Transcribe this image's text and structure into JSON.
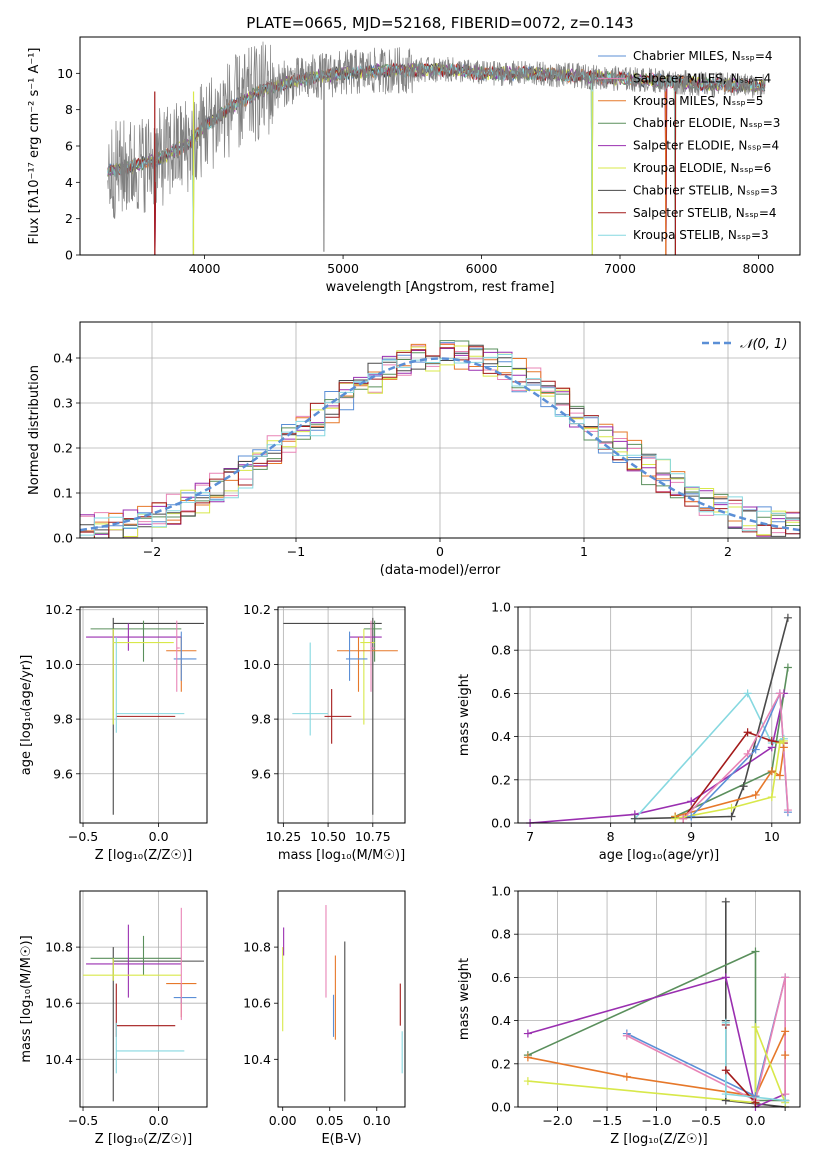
{
  "colors": {
    "chabrier_miles": "#5b8fd6",
    "salpeter_miles": "#e884b6",
    "kroupa_miles": "#e6782a",
    "chabrier_elodie": "#5a8f5c",
    "salpeter_elodie": "#9a2fb0",
    "kroupa_elodie": "#d8e84a",
    "chabrier_stelib": "#4a4a4a",
    "salpeter_stelib": "#a31a1a",
    "kroupa_stelib": "#86d8e0",
    "data": "#808080",
    "normal": "#5b8fd6",
    "grid": "#b0b0b0"
  },
  "chart_data": [
    {
      "id": "spectrum",
      "type": "line",
      "title": "PLATE=0665, MJD=52168, FIBERID=0072, z=0.143",
      "xlabel": "wavelength [Angstrom, rest frame]",
      "ylabel": "Flux [fλ10⁻¹⁷ erg cm⁻² s⁻¹ A⁻¹]",
      "xlim": [
        3100,
        8300
      ],
      "ylim": [
        0,
        12
      ],
      "xticks": [
        4000,
        5000,
        6000,
        7000,
        8000
      ],
      "yticks": [
        0,
        2,
        4,
        6,
        8,
        10
      ],
      "grid": false,
      "legend_position": "right",
      "series": [
        {
          "name": "Chabrier MILES, Nₛₛₚ=4",
          "color_key": "chabrier_miles"
        },
        {
          "name": "Salpeter MILES, Nₛₛₚ=4",
          "color_key": "salpeter_miles"
        },
        {
          "name": "Kroupa MILES, Nₛₛₚ=5",
          "color_key": "kroupa_miles"
        },
        {
          "name": "Chabrier ELODIE, Nₛₛₚ=3",
          "color_key": "chabrier_elodie"
        },
        {
          "name": "Salpeter ELODIE, Nₛₛₚ=4",
          "color_key": "salpeter_elodie"
        },
        {
          "name": "Kroupa ELODIE, Nₛₛₚ=6",
          "color_key": "kroupa_elodie"
        },
        {
          "name": "Chabrier STELIB, Nₛₛₚ=3",
          "color_key": "chabrier_stelib"
        },
        {
          "name": "Salpeter STELIB, Nₛₛₚ=4",
          "color_key": "salpeter_stelib"
        },
        {
          "name": "Kroupa STELIB, Nₛₛₚ=3",
          "color_key": "kroupa_stelib"
        }
      ],
      "continuum": {
        "x": [
          3300,
          3500,
          3700,
          3900,
          4000,
          4200,
          4400,
          4600,
          4800,
          5000,
          5200,
          5500,
          5800,
          6000,
          6300,
          6600,
          7000,
          7300,
          7600,
          8050
        ],
        "y": [
          4.6,
          4.9,
          5.4,
          6.2,
          7.1,
          8.2,
          9.0,
          9.5,
          9.8,
          10.0,
          10.1,
          10.2,
          10.2,
          10.0,
          10.0,
          9.9,
          9.7,
          9.6,
          9.4,
          9.3
        ]
      },
      "data_wavelength_range": [
        3300,
        8050
      ],
      "absorption_dips": [
        {
          "x": 4861,
          "y": 0.2
        },
        {
          "x": 3935,
          "y": 4.3
        }
      ],
      "model_dips": [
        {
          "x": 3640,
          "y": 0.0
        },
        {
          "x": 3920,
          "y": 0.0
        },
        {
          "x": 6800,
          "y": 0.0
        },
        {
          "x": 7330,
          "y": 0.0
        },
        {
          "x": 7400,
          "y": 0.0
        }
      ]
    },
    {
      "id": "residuals",
      "type": "histogram",
      "xlabel": "(data-model)/error",
      "ylabel": "Normed distribution",
      "xlim": [
        -2.5,
        2.5
      ],
      "ylim": [
        0,
        0.48
      ],
      "xticks": [
        -2,
        -1,
        0,
        1,
        2
      ],
      "yticks": [
        0.0,
        0.1,
        0.2,
        0.3,
        0.4
      ],
      "grid": true,
      "bin_width": 0.1,
      "legend": "𝒩(0, 1)",
      "legend_position": "top-right",
      "normal": {
        "mean": 0,
        "sigma": 1
      }
    },
    {
      "id": "age_vs_z",
      "type": "errorbar",
      "xlabel": "Z [log₁₀(Z/Z☉)]",
      "ylabel": "age  [log₁₀(age/yr)]",
      "xlim": [
        -0.52,
        0.32
      ],
      "ylim": [
        9.42,
        10.21
      ],
      "xticks": [
        -0.5,
        0.0
      ],
      "yticks": [
        9.6,
        9.8,
        10.0,
        10.2
      ],
      "grid": true,
      "points": [
        {
          "color_key": "chabrier_stelib",
          "x": -0.3,
          "xerr": [
            0.0,
            0.6
          ],
          "y": 10.15,
          "yerr": [
            0.7,
            0.02
          ]
        },
        {
          "color_key": "chabrier_elodie",
          "x": -0.1,
          "xerr": [
            0.35,
            0.25
          ],
          "y": 10.13,
          "yerr": [
            0.12,
            0.03
          ]
        },
        {
          "color_key": "salpeter_elodie",
          "x": -0.2,
          "xerr": [
            0.28,
            0.35
          ],
          "y": 10.1,
          "yerr": [
            0.05,
            0.05
          ]
        },
        {
          "color_key": "kroupa_elodie",
          "x": -0.3,
          "xerr": [
            0.0,
            0.4
          ],
          "y": 10.08,
          "yerr": [
            0.3,
            0.05
          ]
        },
        {
          "color_key": "kroupa_miles",
          "x": 0.15,
          "xerr": [
            0.1,
            0.1
          ],
          "y": 10.05,
          "yerr": [
            0.15,
            0.05
          ]
        },
        {
          "color_key": "chabrier_miles",
          "x": 0.15,
          "xerr": [
            0.05,
            0.1
          ],
          "y": 10.02,
          "yerr": [
            0.08,
            0.1
          ]
        },
        {
          "color_key": "salpeter_miles",
          "x": 0.12,
          "xerr": [
            0.0,
            0.02
          ],
          "y": 10.06,
          "yerr": [
            0.16,
            0.1
          ]
        },
        {
          "color_key": "salpeter_stelib",
          "x": -0.28,
          "xerr": [
            0.0,
            0.39
          ],
          "y": 9.81,
          "yerr": [
            0.0,
            0.0
          ]
        },
        {
          "color_key": "kroupa_stelib",
          "x": -0.28,
          "xerr": [
            0.0,
            0.45
          ],
          "y": 9.82,
          "yerr": [
            0.07,
            0.28
          ]
        }
      ]
    },
    {
      "id": "age_vs_mass",
      "type": "errorbar",
      "xlabel": "mass [log₁₀(M/M☉)]",
      "ylabel": "",
      "xlim": [
        10.22,
        10.93
      ],
      "ylim": [
        9.42,
        10.21
      ],
      "xticks": [
        10.25,
        10.5,
        10.75
      ],
      "yticks": [
        9.6,
        9.8,
        10.0,
        10.2
      ],
      "grid": true,
      "points": [
        {
          "color_key": "chabrier_stelib",
          "x": 10.75,
          "xerr": [
            0.5,
            0.05
          ],
          "y": 10.15,
          "yerr": [
            0.7,
            0.02
          ]
        },
        {
          "color_key": "chabrier_elodie",
          "x": 10.76,
          "xerr": [
            0.06,
            0.04
          ],
          "y": 10.13,
          "yerr": [
            0.12,
            0.03
          ]
        },
        {
          "color_key": "salpeter_elodie",
          "x": 10.74,
          "xerr": [
            0.12,
            0.06
          ],
          "y": 10.1,
          "yerr": [
            0.05,
            0.05
          ]
        },
        {
          "color_key": "kroupa_elodie",
          "x": 10.7,
          "xerr": [
            0.02,
            0.06
          ],
          "y": 10.08,
          "yerr": [
            0.3,
            0.05
          ]
        },
        {
          "color_key": "kroupa_miles",
          "x": 10.67,
          "xerr": [
            0.12,
            0.22
          ],
          "y": 10.05,
          "yerr": [
            0.15,
            0.05
          ]
        },
        {
          "color_key": "chabrier_miles",
          "x": 10.62,
          "xerr": [
            0.02,
            0.1
          ],
          "y": 10.02,
          "yerr": [
            0.08,
            0.1
          ]
        },
        {
          "color_key": "salpeter_miles",
          "x": 10.74,
          "xerr": [
            0.0,
            0.02
          ],
          "y": 10.06,
          "yerr": [
            0.16,
            0.1
          ]
        },
        {
          "color_key": "salpeter_stelib",
          "x": 10.52,
          "xerr": [
            0.04,
            0.11
          ],
          "y": 9.81,
          "yerr": [
            0.1,
            0.1
          ]
        },
        {
          "color_key": "kroupa_stelib",
          "x": 10.4,
          "xerr": [
            0.1,
            0.1
          ],
          "y": 9.82,
          "yerr": [
            0.08,
            0.26
          ]
        }
      ]
    },
    {
      "id": "weight_vs_age",
      "type": "line",
      "xlabel": "age  [log₁₀(age/yr)]",
      "ylabel": "mass weight",
      "xlim": [
        6.85,
        10.35
      ],
      "ylim": [
        0.0,
        1.0
      ],
      "xticks": [
        7,
        8,
        9,
        10
      ],
      "yticks": [
        0.0,
        0.2,
        0.4,
        0.6,
        0.8,
        1.0
      ],
      "grid": true,
      "series": [
        {
          "color_key": "salpeter_elodie",
          "x": [
            7.0,
            8.3,
            9.0,
            10.0,
            10.15
          ],
          "y": [
            0.0,
            0.04,
            0.1,
            0.35,
            0.6
          ]
        },
        {
          "color_key": "kroupa_stelib",
          "x": [
            8.3,
            9.7,
            10.0,
            10.15
          ],
          "y": [
            0.02,
            0.6,
            0.37,
            0.39
          ]
        },
        {
          "color_key": "chabrier_stelib",
          "x": [
            8.3,
            9.5,
            9.65,
            10.2
          ],
          "y": [
            0.02,
            0.03,
            0.17,
            0.95
          ]
        },
        {
          "color_key": "chabrier_elodie",
          "x": [
            8.8,
            10.0,
            10.2
          ],
          "y": [
            0.03,
            0.24,
            0.72
          ]
        },
        {
          "color_key": "salpeter_stelib",
          "x": [
            8.9,
            9.7,
            10.0,
            10.15
          ],
          "y": [
            0.02,
            0.42,
            0.38,
            0.37
          ]
        },
        {
          "color_key": "kroupa_miles",
          "x": [
            8.8,
            9.8,
            10.0,
            10.1,
            10.15
          ],
          "y": [
            0.03,
            0.13,
            0.24,
            0.22,
            0.35
          ]
        },
        {
          "color_key": "chabrier_miles",
          "x": [
            9.0,
            9.8,
            10.1,
            10.2
          ],
          "y": [
            0.03,
            0.34,
            0.6,
            0.05
          ]
        },
        {
          "color_key": "salpeter_miles",
          "x": [
            8.9,
            9.7,
            10.1,
            10.2
          ],
          "y": [
            0.02,
            0.32,
            0.6,
            0.06
          ]
        },
        {
          "color_key": "kroupa_elodie",
          "x": [
            8.8,
            9.5,
            10.0,
            10.1,
            10.15
          ],
          "y": [
            0.02,
            0.07,
            0.12,
            0.37,
            0.38
          ]
        }
      ]
    },
    {
      "id": "mass_vs_z",
      "type": "errorbar",
      "xlabel": "Z [log₁₀(Z/Z☉)]",
      "ylabel": "mass [log₁₀(M/M☉)]",
      "xlim": [
        -0.52,
        0.32
      ],
      "ylim": [
        10.23,
        11.0
      ],
      "xticks": [
        -0.5,
        0.0
      ],
      "yticks": [
        10.4,
        10.6,
        10.8
      ],
      "grid": true,
      "points": [
        {
          "color_key": "chabrier_stelib",
          "x": -0.3,
          "xerr": [
            0.0,
            0.6
          ],
          "y": 10.75,
          "yerr": [
            0.5,
            0.05
          ]
        },
        {
          "color_key": "chabrier_elodie",
          "x": -0.1,
          "xerr": [
            0.35,
            0.25
          ],
          "y": 10.76,
          "yerr": [
            0.06,
            0.08
          ]
        },
        {
          "color_key": "salpeter_elodie",
          "x": -0.2,
          "xerr": [
            0.28,
            0.35
          ],
          "y": 10.74,
          "yerr": [
            0.12,
            0.14
          ]
        },
        {
          "color_key": "kroupa_elodie",
          "x": -0.3,
          "xerr": [
            0.2,
            0.45
          ],
          "y": 10.7,
          "yerr": [
            0.02,
            0.06
          ]
        },
        {
          "color_key": "kroupa_miles",
          "x": 0.15,
          "xerr": [
            0.1,
            0.1
          ],
          "y": 10.67,
          "yerr": [
            0.12,
            0.0
          ]
        },
        {
          "color_key": "chabrier_miles",
          "x": 0.15,
          "xerr": [
            0.05,
            0.1
          ],
          "y": 10.62,
          "yerr": [
            0.02,
            0.0
          ]
        },
        {
          "color_key": "salpeter_miles",
          "x": 0.15,
          "xerr": [
            0.0,
            0.0
          ],
          "y": 10.74,
          "yerr": [
            0.2,
            0.2
          ]
        },
        {
          "color_key": "salpeter_stelib",
          "x": -0.28,
          "xerr": [
            0.0,
            0.39
          ],
          "y": 10.52,
          "yerr": [
            0.04,
            0.15
          ]
        },
        {
          "color_key": "kroupa_stelib",
          "x": -0.28,
          "xerr": [
            0.0,
            0.45
          ],
          "y": 10.43,
          "yerr": [
            0.08,
            0.1
          ]
        }
      ]
    },
    {
      "id": "mass_vs_ebv",
      "type": "errorbar",
      "xlabel": "E(B-V)",
      "ylabel": "",
      "xlim": [
        -0.005,
        0.13
      ],
      "ylim": [
        10.23,
        11.0
      ],
      "xticks": [
        0.0,
        0.05,
        0.1
      ],
      "yticks": [
        10.4,
        10.6,
        10.8
      ],
      "grid": false,
      "points": [
        {
          "color_key": "chabrier_stelib",
          "x": 0.066,
          "xerr": [
            0,
            0
          ],
          "y": 10.55,
          "yerr": [
            0.3,
            0.27
          ]
        },
        {
          "color_key": "kroupa_miles",
          "x": 0.056,
          "xerr": [
            0,
            0
          ],
          "y": 10.6,
          "yerr": [
            0.13,
            0.17
          ]
        },
        {
          "color_key": "salpeter_miles",
          "x": 0.046,
          "xerr": [
            0,
            0
          ],
          "y": 10.8,
          "yerr": [
            0.18,
            0.15
          ]
        },
        {
          "color_key": "chabrier_miles",
          "x": 0.054,
          "xerr": [
            0,
            0
          ],
          "y": 10.55,
          "yerr": [
            0.07,
            0.08
          ]
        },
        {
          "color_key": "kroupa_elodie",
          "x": 0.0,
          "xerr": [
            0,
            0
          ],
          "y": 10.66,
          "yerr": [
            0.16,
            0.14
          ]
        },
        {
          "color_key": "salpeter_elodie",
          "x": 0.001,
          "xerr": [
            0,
            0
          ],
          "y": 10.82,
          "yerr": [
            0.05,
            0.05
          ]
        },
        {
          "color_key": "salpeter_stelib",
          "x": 0.125,
          "xerr": [
            0,
            0
          ],
          "y": 10.6,
          "yerr": [
            0.08,
            0.07
          ]
        },
        {
          "color_key": "kroupa_stelib",
          "x": 0.127,
          "xerr": [
            0,
            0
          ],
          "y": 10.45,
          "yerr": [
            0.1,
            0.05
          ]
        }
      ]
    },
    {
      "id": "weight_vs_z",
      "type": "line",
      "xlabel": "Z [log₁₀(Z/Z☉)]",
      "ylabel": "mass weight",
      "xlim": [
        -2.4,
        0.45
      ],
      "ylim": [
        0.0,
        1.0
      ],
      "xticks": [
        -2.0,
        -1.5,
        -1.0,
        -0.5,
        0.0
      ],
      "yticks": [
        0.0,
        0.2,
        0.4,
        0.6,
        0.8,
        1.0
      ],
      "grid": true,
      "series": [
        {
          "color_key": "chabrier_stelib",
          "x": [
            -0.3,
            -0.3,
            -0.3,
            0.3
          ],
          "y": [
            0.95,
            0.4,
            0.03,
            0.0
          ]
        },
        {
          "color_key": "chabrier_elodie",
          "x": [
            -2.3,
            0.0,
            0.0,
            0.3
          ],
          "y": [
            0.24,
            0.72,
            0.03,
            0.03
          ]
        },
        {
          "color_key": "salpeter_elodie",
          "x": [
            -2.3,
            -0.3,
            0.0,
            0.3
          ],
          "y": [
            0.34,
            0.6,
            0.0,
            0.06
          ]
        },
        {
          "color_key": "kroupa_miles",
          "x": [
            -2.3,
            -1.3,
            0.0,
            0.3,
            0.3,
            0.3
          ],
          "y": [
            0.23,
            0.14,
            0.05,
            0.35,
            0.24,
            0.03
          ]
        },
        {
          "color_key": "chabrier_miles",
          "x": [
            -1.3,
            0.0,
            0.3,
            0.3
          ],
          "y": [
            0.34,
            0.05,
            0.6,
            0.03
          ]
        },
        {
          "color_key": "salpeter_miles",
          "x": [
            -1.3,
            0.0,
            0.3,
            0.3
          ],
          "y": [
            0.33,
            0.03,
            0.6,
            0.06
          ]
        },
        {
          "color_key": "kroupa_elodie",
          "x": [
            -2.3,
            0.0,
            0.0,
            0.3
          ],
          "y": [
            0.12,
            0.02,
            0.37,
            0.02
          ]
        },
        {
          "color_key": "salpeter_stelib",
          "x": [
            -0.3,
            -0.3,
            0.0
          ],
          "y": [
            0.38,
            0.17,
            0.02
          ]
        },
        {
          "color_key": "kroupa_stelib",
          "x": [
            -0.3,
            -0.3,
            0.3
          ],
          "y": [
            0.39,
            0.06,
            0.03
          ]
        }
      ]
    }
  ]
}
